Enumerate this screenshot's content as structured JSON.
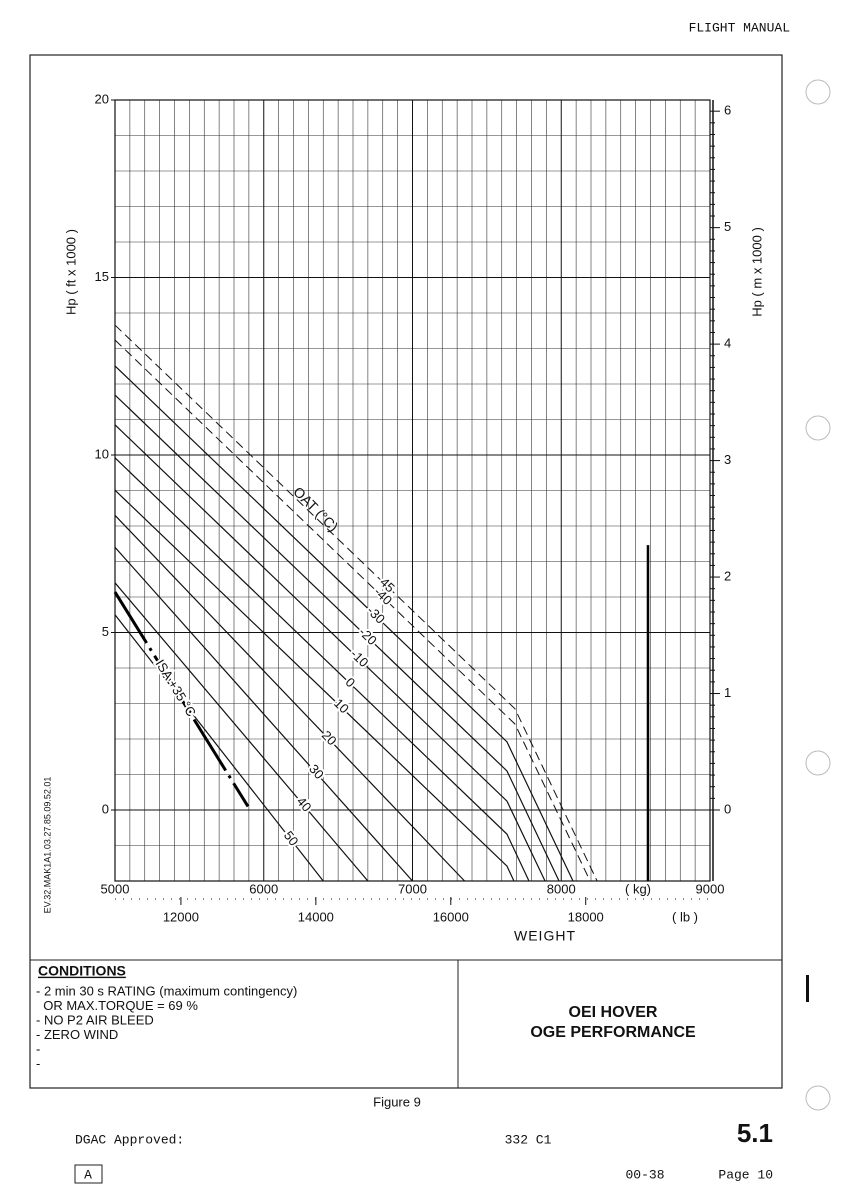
{
  "header": {
    "title": "FLIGHT MANUAL"
  },
  "chart_data": {
    "type": "line",
    "y_label": "Hp ( ft x 1000 )",
    "y2_label": "Hp ( m x 1000 )",
    "x_unit": "( kg)",
    "x2_unit": "( lb )",
    "x_label": "WEIGHT",
    "curve_label": "OAT (°C)",
    "xlim": [
      5000,
      9000
    ],
    "xticks": [
      5000,
      6000,
      7000,
      8000,
      9000
    ],
    "x2lim": [
      11023,
      19842
    ],
    "x2ticks": [
      12000,
      14000,
      16000,
      18000
    ],
    "ylim": [
      -2,
      20
    ],
    "yticks": [
      0,
      5,
      10,
      15,
      20
    ],
    "y2lim": [
      -0.6096,
      6.096
    ],
    "y2ticks": [
      0,
      1,
      2,
      3,
      4,
      5,
      6
    ],
    "grid": true,
    "series": [
      {
        "name": "45",
        "style": "dashed",
        "x": [
          5000,
          7689,
          8241
        ],
        "values": [
          13.66,
          2.85,
          -2
        ]
      },
      {
        "name": "-40",
        "style": "dashed",
        "x": [
          5000,
          7689,
          8194
        ],
        "values": [
          13.24,
          2.42,
          -2
        ]
      },
      {
        "name": "-30",
        "style": "solid",
        "x": [
          5000,
          7635,
          8079
        ],
        "values": [
          12.51,
          1.92,
          -2
        ]
      },
      {
        "name": "-20",
        "style": "solid",
        "x": [
          5000,
          7635,
          7985
        ],
        "values": [
          11.69,
          1.1,
          -2
        ]
      },
      {
        "name": "-10",
        "style": "solid",
        "x": [
          5000,
          7635,
          7891
        ],
        "values": [
          10.85,
          0.25,
          -2
        ]
      },
      {
        "name": "0",
        "style": "solid",
        "x": [
          5000,
          7635,
          7783
        ],
        "values": [
          9.92,
          -0.68,
          -2
        ]
      },
      {
        "name": "10",
        "style": "solid",
        "x": [
          5000,
          7635,
          7682
        ],
        "values": [
          9.01,
          -1.58,
          -2
        ]
      },
      {
        "name": "20",
        "style": "solid",
        "x": [
          5000,
          7350
        ],
        "values": [
          8.3,
          -2
        ]
      },
      {
        "name": "30",
        "style": "solid",
        "x": [
          5000,
          7000
        ],
        "values": [
          7.4,
          -2
        ]
      },
      {
        "name": "40",
        "style": "solid",
        "x": [
          5000,
          6700
        ],
        "values": [
          6.4,
          -2
        ]
      },
      {
        "name": "50",
        "style": "solid",
        "x": [
          5000,
          6400
        ],
        "values": [
          5.5,
          -2
        ]
      },
      {
        "name": "ISA +35 °C",
        "style": "bold",
        "x": [
          5000,
          5894
        ],
        "values": [
          6.14,
          0.1
        ]
      },
      {
        "style": "heavy",
        "x": [
          8583,
          8583
        ],
        "values": [
          7.46,
          -2
        ]
      }
    ]
  },
  "side_code": "EV.32.MAK1A1.03.27.85.09.52.01",
  "conditions": {
    "title": "CONDITIONS",
    "lines": [
      "- 2 min 30 s RATING (maximum contingency)",
      "  OR MAX.TORQUE = 69 %",
      "- NO P2 AIR BLEED",
      "- ZERO WIND",
      "-",
      "-"
    ]
  },
  "figure_title": {
    "lines": [
      "OEI HOVER",
      "OGE PERFORMANCE"
    ]
  },
  "caption": "Figure 9",
  "footer": {
    "approval": "DGAC Approved:",
    "model": "332 C1",
    "section": "5.1",
    "revision": "A",
    "code": "00-38",
    "page": "Page 10"
  }
}
